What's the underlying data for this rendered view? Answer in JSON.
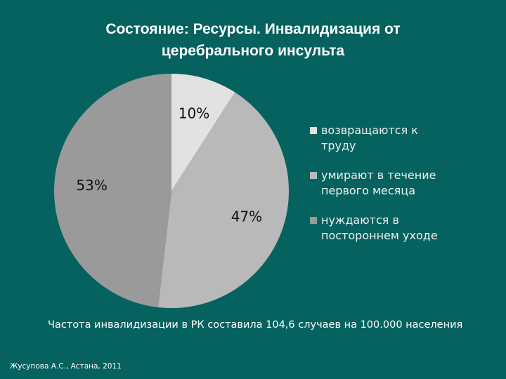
{
  "chart_data": {
    "type": "pie",
    "title": "Состояние: Ресурсы. Инвалидизация от церебрального инсульта",
    "series": [
      {
        "name": "возвращаются к труду",
        "color": "#e2e2e2"
      },
      {
        "name": "умирают в течение первого месяца",
        "color": "#b9b9b9"
      },
      {
        "name": "нуждаются в постороннем уходе",
        "color": "#9a9a9a"
      }
    ],
    "values": [
      10,
      47,
      53
    ],
    "value_labels": [
      "10%",
      "47%",
      "53%"
    ],
    "note": "Частота инвалидизации в РК составила 104,6 случаев на 100.000 населения",
    "source": "Жусупова А.С., Астана, 2011"
  }
}
